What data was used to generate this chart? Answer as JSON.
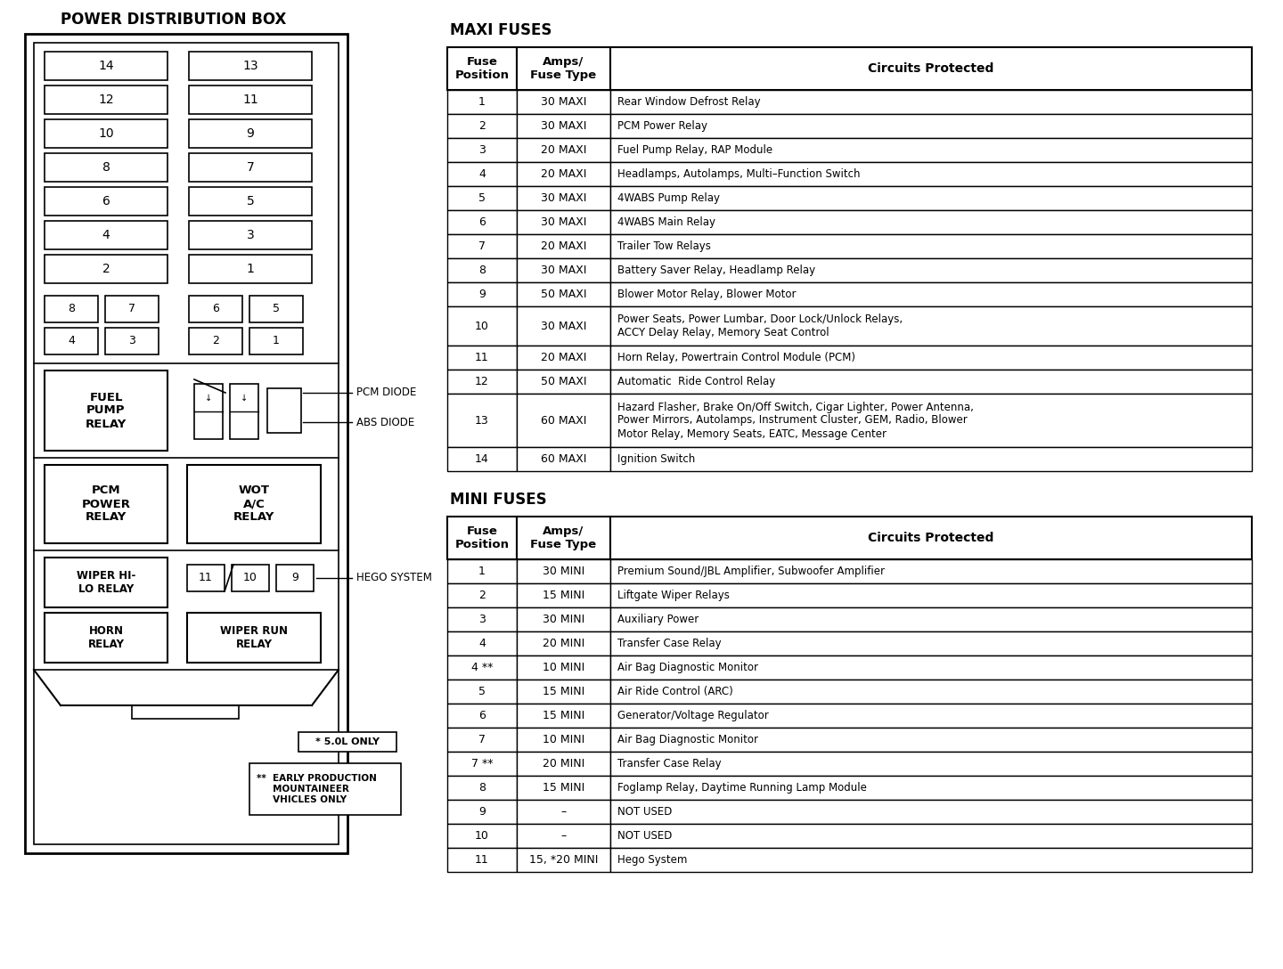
{
  "title_left": "POWER DISTRIBUTION BOX",
  "maxi_title": "MAXI FUSES",
  "mini_title": "MINI FUSES",
  "maxi_rows": [
    [
      "1",
      "30 MAXI",
      "Rear Window Defrost Relay"
    ],
    [
      "2",
      "30 MAXI",
      "PCM Power Relay"
    ],
    [
      "3",
      "20 MAXI",
      "Fuel Pump Relay, RAP Module"
    ],
    [
      "4",
      "20 MAXI",
      "Headlamps, Autolamps, Multi–Function Switch"
    ],
    [
      "5",
      "30 MAXI",
      "4WABS Pump Relay"
    ],
    [
      "6",
      "30 MAXI",
      "4WABS Main Relay"
    ],
    [
      "7",
      "20 MAXI",
      "Trailer Tow Relays"
    ],
    [
      "8",
      "30 MAXI",
      "Battery Saver Relay, Headlamp Relay"
    ],
    [
      "9",
      "50 MAXI",
      "Blower Motor Relay, Blower Motor"
    ],
    [
      "10",
      "30 MAXI",
      "Power Seats, Power Lumbar, Door Lock/Unlock Relays,\nACCY Delay Relay, Memory Seat Control"
    ],
    [
      "11",
      "20 MAXI",
      "Horn Relay, Powertrain Control Module (PCM)"
    ],
    [
      "12",
      "50 MAXI",
      "Automatic  Ride Control Relay"
    ],
    [
      "13",
      "60 MAXI",
      "Hazard Flasher, Brake On/Off Switch, Cigar Lighter, Power Antenna,\nPower Mirrors, Autolamps, Instrument Cluster, GEM, Radio, Blower\nMotor Relay, Memory Seats, EATC, Message Center"
    ],
    [
      "14",
      "60 MAXI",
      "Ignition Switch"
    ]
  ],
  "mini_rows": [
    [
      "1",
      "30 MINI",
      "Premium Sound/JBL Amplifier, Subwoofer Amplifier"
    ],
    [
      "2",
      "15 MINI",
      "Liftgate Wiper Relays"
    ],
    [
      "3",
      "30 MINI",
      "Auxiliary Power"
    ],
    [
      "4",
      "20 MINI",
      "Transfer Case Relay"
    ],
    [
      "4 **",
      "10 MINI",
      "Air Bag Diagnostic Monitor"
    ],
    [
      "5",
      "15 MINI",
      "Air Ride Control (ARC)"
    ],
    [
      "6",
      "15 MINI",
      "Generator/Voltage Regulator"
    ],
    [
      "7",
      "10 MINI",
      "Air Bag Diagnostic Monitor"
    ],
    [
      "7 **",
      "20 MINI",
      "Transfer Case Relay"
    ],
    [
      "8",
      "15 MINI",
      "Foglamp Relay, Daytime Running Lamp Module"
    ],
    [
      "9",
      "–",
      "NOT USED"
    ],
    [
      "10",
      "–",
      "NOT USED"
    ],
    [
      "11",
      "15, *20 MINI",
      "Hego System"
    ]
  ],
  "fuse_labels_left": [
    "14",
    "12",
    "10",
    "8",
    "6",
    "4",
    "2"
  ],
  "fuse_labels_right": [
    "13",
    "11",
    "9",
    "7",
    "5",
    "3",
    "1"
  ],
  "mini_fuse_row1": [
    "8",
    "7",
    "6",
    "5"
  ],
  "mini_fuse_row2": [
    "4",
    "3",
    "2",
    "1"
  ],
  "bottom_fuses": [
    "11",
    "10",
    "9"
  ],
  "note1": "* 5.0L ONLY",
  "pcm_diode_label": "PCM DIODE",
  "abs_diode_label": "ABS DIODE",
  "hego_label": "HEGO SYSTEM"
}
